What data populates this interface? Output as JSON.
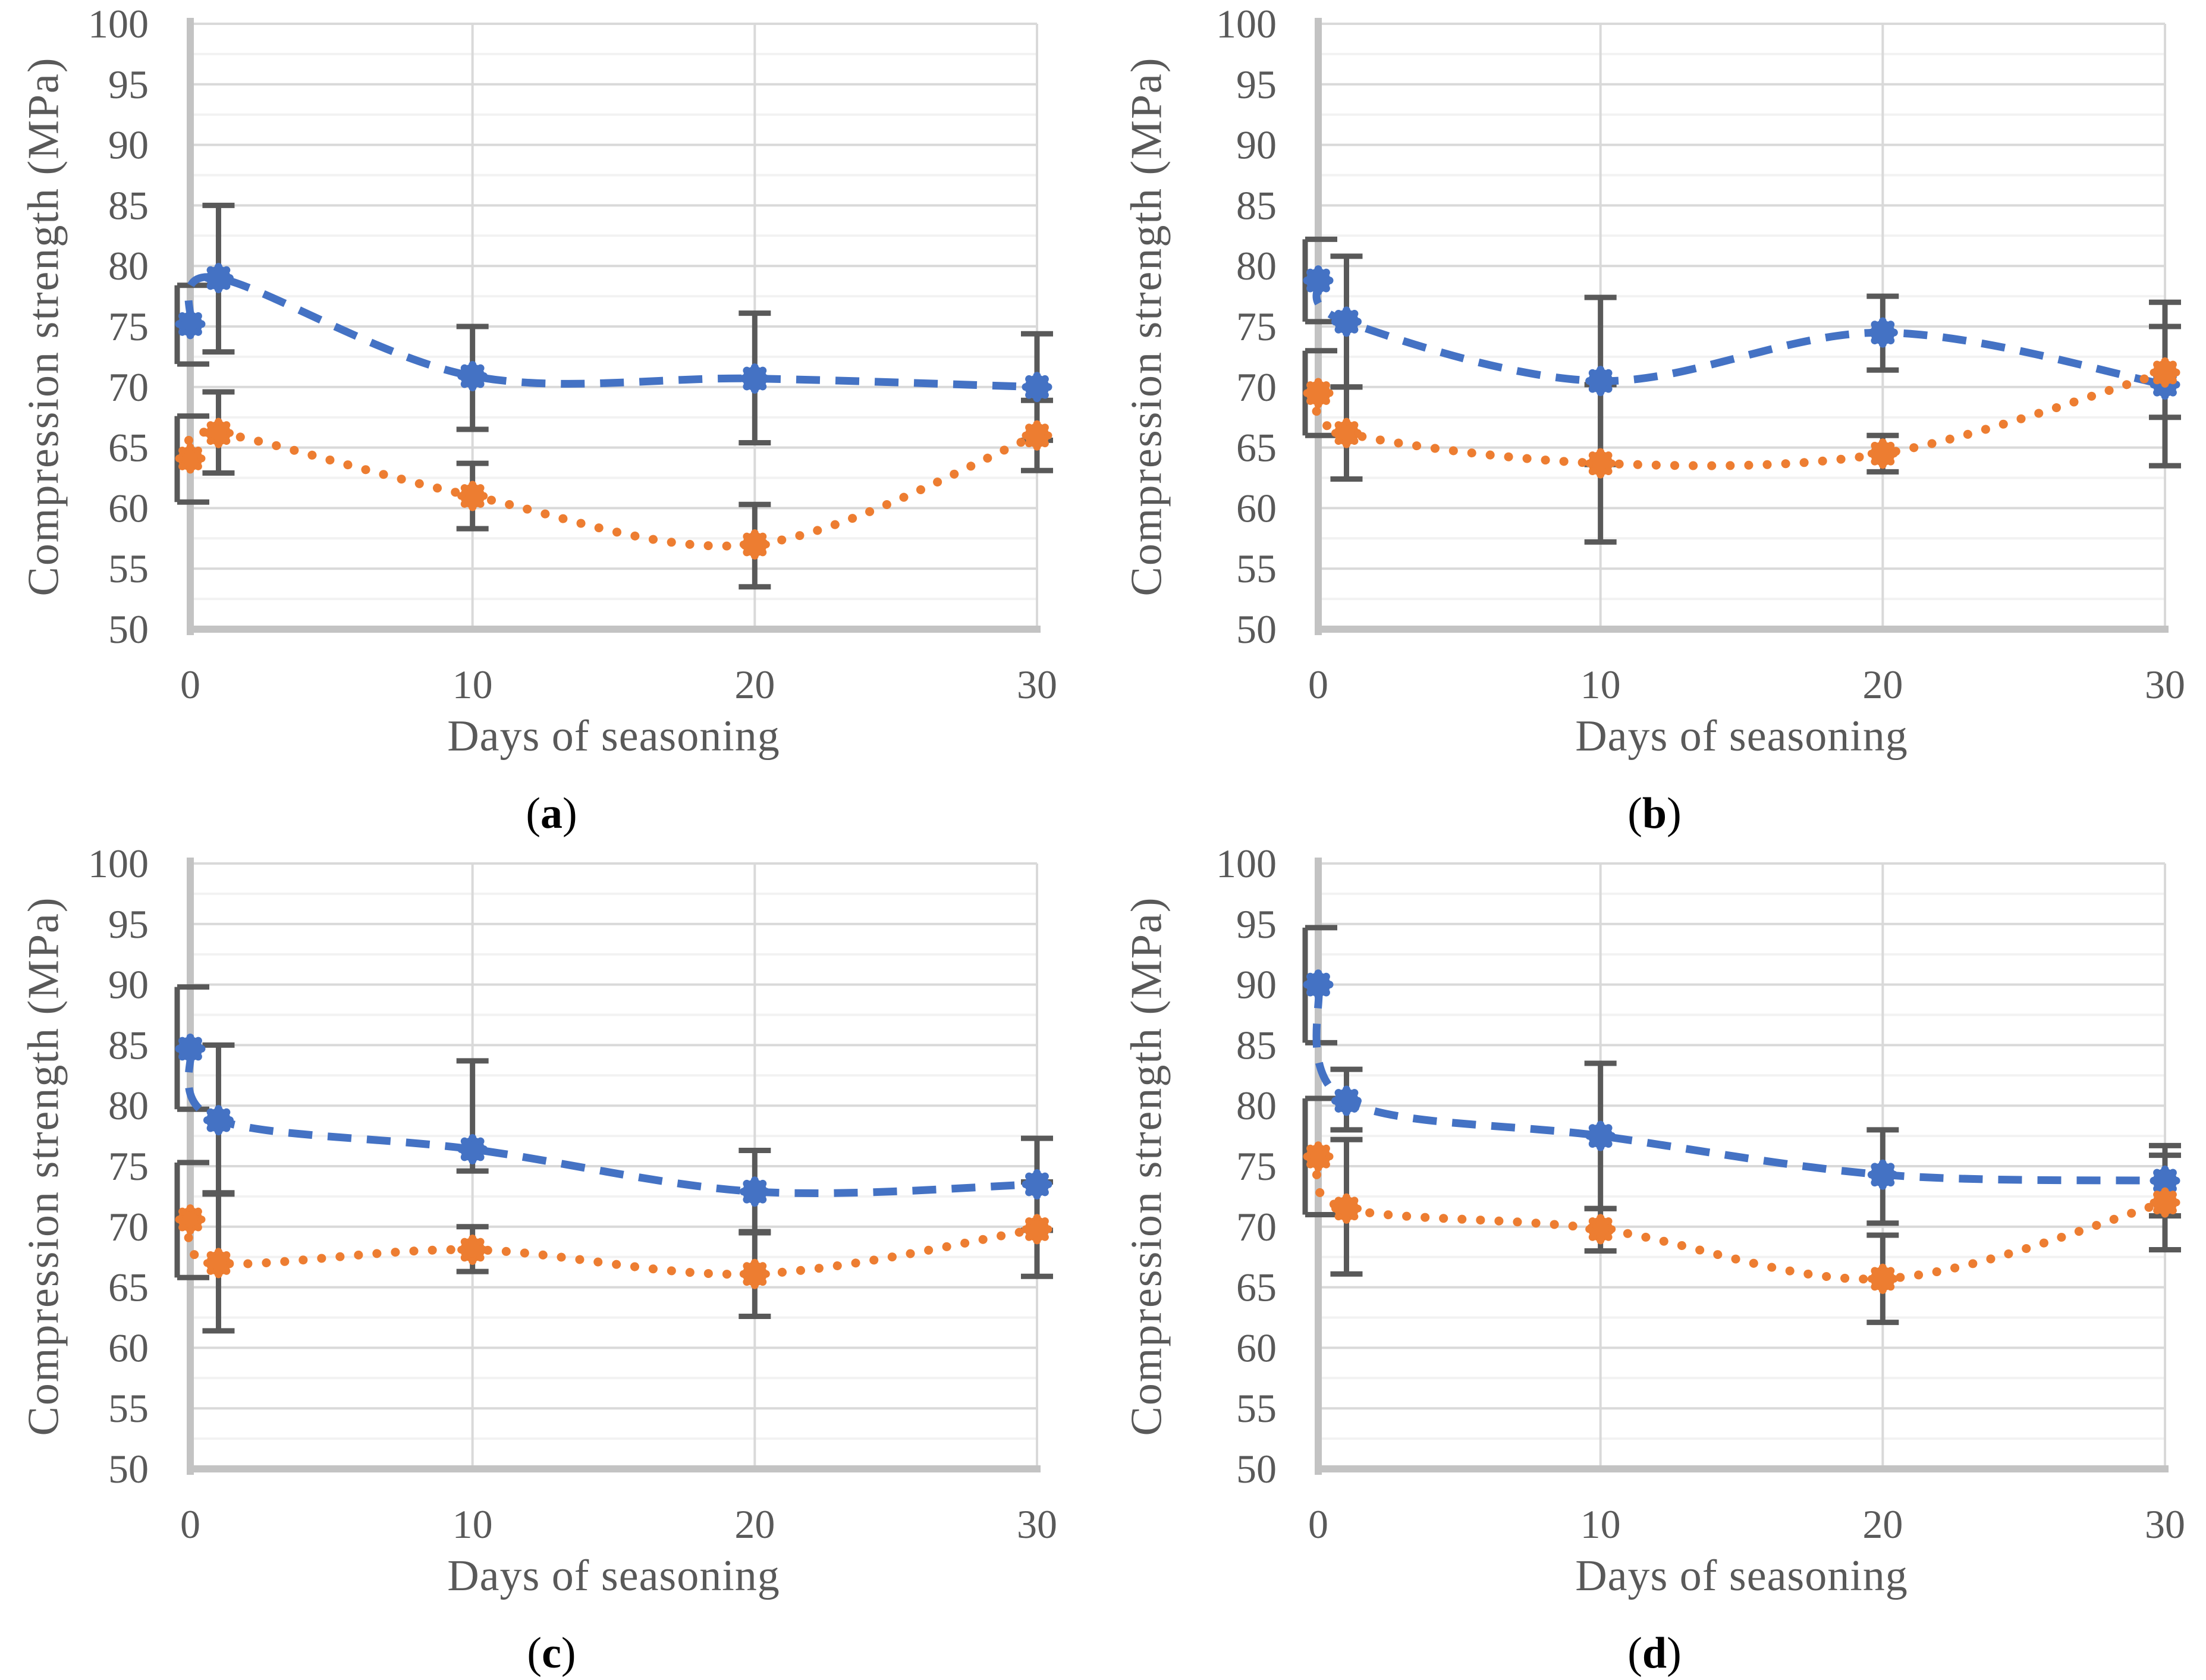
{
  "figure": {
    "x_axis_title": "Days of seasoning",
    "y_axis_title": "Compression strength (MPa)",
    "caption_open": "(",
    "caption_close": ")",
    "y_ticks": [
      50,
      55,
      60,
      65,
      70,
      75,
      80,
      85,
      90,
      95,
      100
    ],
    "x_ticks": [
      0,
      10,
      20,
      30
    ],
    "y_range": [
      50,
      100
    ],
    "x_range": [
      0,
      30
    ],
    "grid": {
      "major_step": 5,
      "minor_step": 2.5,
      "vertical_lines_at": [
        10,
        20,
        30
      ]
    }
  },
  "colors": {
    "series_blue": "#4472C4",
    "series_orange": "#ED7D31",
    "error_bar": "#595959",
    "grid_major": "#D9D9D9",
    "grid_minor": "#F2F2F2",
    "axis_line": "#C3C3C3",
    "tick_text": "#595959",
    "title_text": "#595959",
    "caption_text": "#000000"
  },
  "chart_data": [
    {
      "id": "a",
      "type": "line",
      "caption_letter": "a",
      "x_label": "Days of seasoning",
      "y_label": "Compression strength (MPa)",
      "x": [
        0,
        1,
        10,
        20,
        30
      ],
      "series": [
        {
          "name": "series-1-blue-dashed",
          "color": "#4472C4",
          "line_style": "dashed",
          "marker": "circle",
          "points": [
            {
              "x": 0,
              "y": 75.2,
              "err_lo": 71.9,
              "err_hi": 78.4
            },
            {
              "x": 1,
              "y": 79.0,
              "err_lo": 72.9,
              "err_hi": 85.0
            },
            {
              "x": 10,
              "y": 70.9,
              "err_lo": 66.5,
              "err_hi": 75.0
            },
            {
              "x": 20,
              "y": 70.7,
              "err_lo": 65.4,
              "err_hi": 76.1
            },
            {
              "x": 30,
              "y": 70.0,
              "err_lo": 65.6,
              "err_hi": 74.4
            }
          ]
        },
        {
          "name": "series-2-orange-dotted",
          "color": "#ED7D31",
          "line_style": "dotted",
          "marker": "circle",
          "points": [
            {
              "x": 0,
              "y": 64.1,
              "err_lo": 60.5,
              "err_hi": 67.6
            },
            {
              "x": 1,
              "y": 66.2,
              "err_lo": 62.9,
              "err_hi": 69.6
            },
            {
              "x": 10,
              "y": 61.0,
              "err_lo": 58.3,
              "err_hi": 63.7
            },
            {
              "x": 20,
              "y": 57.0,
              "err_lo": 53.5,
              "err_hi": 60.3
            },
            {
              "x": 30,
              "y": 66.0,
              "err_lo": 63.1,
              "err_hi": 68.9
            }
          ]
        }
      ]
    },
    {
      "id": "b",
      "type": "line",
      "caption_letter": "b",
      "x_label": "Days of seasoning",
      "y_label": "Compression strength (MPa)",
      "x": [
        0,
        1,
        10,
        20,
        30
      ],
      "series": [
        {
          "name": "series-1-blue-dashed",
          "color": "#4472C4",
          "line_style": "dashed",
          "marker": "circle",
          "points": [
            {
              "x": 0,
              "y": 78.8,
              "err_lo": 75.4,
              "err_hi": 82.2
            },
            {
              "x": 1,
              "y": 75.4,
              "err_lo": 70.0,
              "err_hi": 80.8
            },
            {
              "x": 10,
              "y": 70.5,
              "err_lo": 63.6,
              "err_hi": 77.4
            },
            {
              "x": 20,
              "y": 74.5,
              "err_lo": 71.4,
              "err_hi": 77.5
            },
            {
              "x": 30,
              "y": 70.2,
              "err_lo": 63.5,
              "err_hi": 77.0
            }
          ]
        },
        {
          "name": "series-2-orange-dotted",
          "color": "#ED7D31",
          "line_style": "dotted",
          "marker": "circle",
          "points": [
            {
              "x": 0,
              "y": 69.5,
              "err_lo": 66.0,
              "err_hi": 73.0
            },
            {
              "x": 1,
              "y": 66.2,
              "err_lo": 62.4,
              "err_hi": 70.0
            },
            {
              "x": 10,
              "y": 63.7,
              "err_lo": 57.2,
              "err_hi": 70.2
            },
            {
              "x": 20,
              "y": 64.5,
              "err_lo": 63.0,
              "err_hi": 66.0
            },
            {
              "x": 30,
              "y": 71.2,
              "err_lo": 67.5,
              "err_hi": 75.0
            }
          ]
        }
      ]
    },
    {
      "id": "c",
      "type": "line",
      "caption_letter": "c",
      "x_label": "Days of seasoning",
      "y_label": "Compression strength (MPa)",
      "x": [
        0,
        1,
        10,
        20,
        30
      ],
      "series": [
        {
          "name": "series-1-blue-dashed",
          "color": "#4472C4",
          "line_style": "dashed",
          "marker": "circle",
          "points": [
            {
              "x": 0,
              "y": 84.7,
              "err_lo": 79.7,
              "err_hi": 89.8
            },
            {
              "x": 1,
              "y": 78.8,
              "err_lo": 72.7,
              "err_hi": 85.0
            },
            {
              "x": 10,
              "y": 76.4,
              "err_lo": 74.6,
              "err_hi": 83.7
            },
            {
              "x": 20,
              "y": 72.9,
              "err_lo": 69.5,
              "err_hi": 76.3
            },
            {
              "x": 30,
              "y": 73.5,
              "err_lo": 69.7,
              "err_hi": 77.3
            }
          ]
        },
        {
          "name": "series-2-orange-dotted",
          "color": "#ED7D31",
          "line_style": "dotted",
          "marker": "circle",
          "points": [
            {
              "x": 0,
              "y": 70.6,
              "err_lo": 65.8,
              "err_hi": 75.3
            },
            {
              "x": 1,
              "y": 67.0,
              "err_lo": 61.4,
              "err_hi": 72.8
            },
            {
              "x": 10,
              "y": 68.1,
              "err_lo": 66.3,
              "err_hi": 70.0
            },
            {
              "x": 20,
              "y": 66.1,
              "err_lo": 62.6,
              "err_hi": 69.6
            },
            {
              "x": 30,
              "y": 69.8,
              "err_lo": 65.9,
              "err_hi": 73.7
            }
          ]
        }
      ]
    },
    {
      "id": "d",
      "type": "line",
      "caption_letter": "d",
      "x_label": "Days of seasoning",
      "y_label": "Compression strength (MPa)",
      "x": [
        0,
        1,
        10,
        20,
        30
      ],
      "series": [
        {
          "name": "series-1-blue-dashed",
          "color": "#4472C4",
          "line_style": "dashed",
          "marker": "circle",
          "points": [
            {
              "x": 0,
              "y": 90.0,
              "err_lo": 85.2,
              "err_hi": 94.7
            },
            {
              "x": 1,
              "y": 80.4,
              "err_lo": 78.0,
              "err_hi": 83.0
            },
            {
              "x": 10,
              "y": 77.5,
              "err_lo": 71.5,
              "err_hi": 83.5
            },
            {
              "x": 20,
              "y": 74.3,
              "err_lo": 70.3,
              "err_hi": 78.0
            },
            {
              "x": 30,
              "y": 73.8,
              "err_lo": 70.9,
              "err_hi": 76.7
            }
          ]
        },
        {
          "name": "series-2-orange-dotted",
          "color": "#ED7D31",
          "line_style": "dotted",
          "marker": "circle",
          "points": [
            {
              "x": 0,
              "y": 75.8,
              "err_lo": 71.0,
              "err_hi": 80.6
            },
            {
              "x": 1,
              "y": 71.5,
              "err_lo": 66.1,
              "err_hi": 77.2
            },
            {
              "x": 10,
              "y": 69.8,
              "err_lo": 68.0,
              "err_hi": 71.5
            },
            {
              "x": 20,
              "y": 65.7,
              "err_lo": 62.1,
              "err_hi": 69.3
            },
            {
              "x": 30,
              "y": 72.0,
              "err_lo": 68.1,
              "err_hi": 75.9
            }
          ]
        }
      ]
    }
  ]
}
